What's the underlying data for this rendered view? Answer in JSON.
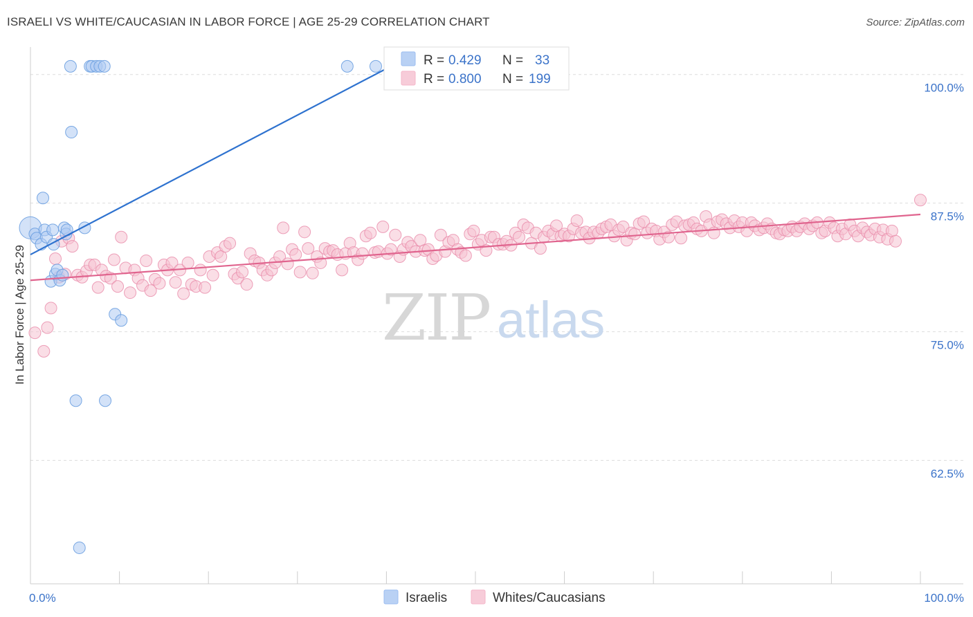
{
  "header": {
    "title": "ISRAELI VS WHITE/CAUCASIAN IN LABOR FORCE | AGE 25-29 CORRELATION CHART",
    "source": "Source: ZipAtlas.com"
  },
  "watermark": {
    "zip": "ZIP",
    "atlas": "atlas"
  },
  "legend_top": {
    "rows": [
      {
        "r_label": "R =",
        "r_value": "0.429",
        "n_label": "N =",
        "n_value": "33",
        "color": "#9bbdf0"
      },
      {
        "r_label": "R =",
        "r_value": "0.800",
        "n_label": "N =",
        "n_value": "199",
        "color": "#f4b6c9"
      }
    ]
  },
  "legend_bottom": {
    "items": [
      {
        "label": "Israelis",
        "color": "#9bbdf0"
      },
      {
        "label": "Whites/Caucasians",
        "color": "#f4b6c9"
      }
    ]
  },
  "colors": {
    "blue_fill": "#aecbf2",
    "blue_stroke": "#6a9ee0",
    "blue_line": "#2e72cf",
    "pink_fill": "#f6c3d2",
    "pink_stroke": "#e88aa9",
    "pink_line": "#e0648e",
    "grid": "#dddddd",
    "tick_text": "#3b73c9"
  },
  "chart_data": {
    "type": "scatter",
    "title": "ISRAELI VS WHITE/CAUCASIAN IN LABOR FORCE | AGE 25-29 CORRELATION CHART",
    "xlabel": "",
    "ylabel": "In Labor Force | Age 25-29",
    "xlim": [
      0,
      100
    ],
    "ylim": [
      50.5,
      102
    ],
    "x_tick_labels": [
      "0.0%",
      "100.0%"
    ],
    "y_ticks": [
      62.5,
      75.0,
      87.5,
      100.0
    ],
    "y_tick_labels": [
      "62.5%",
      "75.0%",
      "87.5%",
      "100.0%"
    ],
    "grid": "horizontal dashed",
    "legend_placement": "top-center",
    "series": [
      {
        "name": "Israelis",
        "r": 0.429,
        "n": 33,
        "trend": {
          "x": [
            0,
            40.5
          ],
          "y": [
            82.5,
            100.8
          ]
        },
        "points": [
          {
            "x": 0,
            "y": 85.1,
            "big": true
          },
          {
            "x": 0.5,
            "y": 84.5
          },
          {
            "x": 0.7,
            "y": 84.1
          },
          {
            "x": 1.2,
            "y": 83.5
          },
          {
            "x": 1.6,
            "y": 84.9
          },
          {
            "x": 1.8,
            "y": 84.2
          },
          {
            "x": 2.3,
            "y": 79.9
          },
          {
            "x": 2.5,
            "y": 84.9
          },
          {
            "x": 2.6,
            "y": 83.5
          },
          {
            "x": 2.8,
            "y": 80.6
          },
          {
            "x": 3.0,
            "y": 81.0
          },
          {
            "x": 3.3,
            "y": 80.0
          },
          {
            "x": 3.6,
            "y": 80.5
          },
          {
            "x": 3.8,
            "y": 85.1
          },
          {
            "x": 4.0,
            "y": 84.5
          },
          {
            "x": 4.1,
            "y": 84.9
          },
          {
            "x": 1.4,
            "y": 88.0
          },
          {
            "x": 4.5,
            "y": 100.8
          },
          {
            "x": 4.6,
            "y": 94.4
          },
          {
            "x": 5.1,
            "y": 68.3
          },
          {
            "x": 5.5,
            "y": 54.0
          },
          {
            "x": 6.1,
            "y": 85.1
          },
          {
            "x": 6.7,
            "y": 100.8
          },
          {
            "x": 6.9,
            "y": 100.8
          },
          {
            "x": 7.4,
            "y": 100.8
          },
          {
            "x": 7.8,
            "y": 100.8
          },
          {
            "x": 8.3,
            "y": 100.8
          },
          {
            "x": 8.4,
            "y": 68.3
          },
          {
            "x": 9.5,
            "y": 76.7
          },
          {
            "x": 10.2,
            "y": 76.1
          },
          {
            "x": 35.6,
            "y": 100.8
          },
          {
            "x": 38.8,
            "y": 100.8
          },
          {
            "x": 45.2,
            "y": 100.8
          }
        ]
      },
      {
        "name": "Whites/Caucasians",
        "r": 0.8,
        "n": 199,
        "trend": {
          "x": [
            0,
            100
          ],
          "y": [
            80.0,
            86.4
          ]
        },
        "points": [
          {
            "x": 0.5,
            "y": 74.9
          },
          {
            "x": 1.5,
            "y": 73.1
          },
          {
            "x": 1.9,
            "y": 75.4
          },
          {
            "x": 2.3,
            "y": 77.3
          },
          {
            "x": 2.8,
            "y": 82.1
          },
          {
            "x": 3.2,
            "y": 80.3
          },
          {
            "x": 3.5,
            "y": 83.8
          },
          {
            "x": 3.9,
            "y": 80.6
          },
          {
            "x": 4.3,
            "y": 84.1
          },
          {
            "x": 4.7,
            "y": 83.3
          },
          {
            "x": 5.3,
            "y": 80.5
          },
          {
            "x": 5.8,
            "y": 80.3
          },
          {
            "x": 6.3,
            "y": 80.9
          },
          {
            "x": 6.7,
            "y": 81.5
          },
          {
            "x": 7.2,
            "y": 81.5
          },
          {
            "x": 7.6,
            "y": 79.3
          },
          {
            "x": 8.0,
            "y": 81.0
          },
          {
            "x": 8.5,
            "y": 80.4
          },
          {
            "x": 9.0,
            "y": 80.2
          },
          {
            "x": 9.4,
            "y": 82.0
          },
          {
            "x": 9.8,
            "y": 79.4
          },
          {
            "x": 10.2,
            "y": 84.2
          },
          {
            "x": 10.7,
            "y": 81.2
          },
          {
            "x": 11.2,
            "y": 78.8
          },
          {
            "x": 11.7,
            "y": 81.0
          },
          {
            "x": 12.1,
            "y": 80.2
          },
          {
            "x": 12.6,
            "y": 79.5
          },
          {
            "x": 13.0,
            "y": 81.9
          },
          {
            "x": 13.5,
            "y": 79.0
          },
          {
            "x": 14.0,
            "y": 80.1
          },
          {
            "x": 14.5,
            "y": 79.7
          },
          {
            "x": 15.0,
            "y": 81.5
          },
          {
            "x": 15.4,
            "y": 81.0
          },
          {
            "x": 15.9,
            "y": 81.7
          },
          {
            "x": 16.3,
            "y": 79.8
          },
          {
            "x": 16.8,
            "y": 81.0
          },
          {
            "x": 17.2,
            "y": 78.7
          },
          {
            "x": 17.7,
            "y": 81.7
          },
          {
            "x": 18.1,
            "y": 79.6
          },
          {
            "x": 18.6,
            "y": 79.4
          },
          {
            "x": 19.1,
            "y": 81.0
          },
          {
            "x": 19.6,
            "y": 79.3
          },
          {
            "x": 20.1,
            "y": 82.3
          },
          {
            "x": 20.5,
            "y": 80.5
          },
          {
            "x": 21.0,
            "y": 82.7
          },
          {
            "x": 21.4,
            "y": 82.3
          },
          {
            "x": 21.9,
            "y": 83.3
          },
          {
            "x": 22.4,
            "y": 83.6
          },
          {
            "x": 22.9,
            "y": 80.6
          },
          {
            "x": 23.3,
            "y": 80.2
          },
          {
            "x": 23.8,
            "y": 80.8
          },
          {
            "x": 24.3,
            "y": 79.6
          },
          {
            "x": 24.7,
            "y": 82.6
          },
          {
            "x": 25.2,
            "y": 81.9
          },
          {
            "x": 25.7,
            "y": 81.7
          },
          {
            "x": 26.1,
            "y": 81.0
          },
          {
            "x": 26.6,
            "y": 80.5
          },
          {
            "x": 27.1,
            "y": 81.0
          },
          {
            "x": 27.5,
            "y": 81.7
          },
          {
            "x": 28.0,
            "y": 82.3
          },
          {
            "x": 28.4,
            "y": 85.1
          },
          {
            "x": 28.9,
            "y": 81.6
          },
          {
            "x": 29.4,
            "y": 83.0
          },
          {
            "x": 29.8,
            "y": 82.5
          },
          {
            "x": 30.3,
            "y": 80.8
          },
          {
            "x": 30.8,
            "y": 84.7
          },
          {
            "x": 31.2,
            "y": 83.1
          },
          {
            "x": 31.7,
            "y": 80.7
          },
          {
            "x": 32.2,
            "y": 82.3
          },
          {
            "x": 32.6,
            "y": 81.7
          },
          {
            "x": 33.1,
            "y": 83.1
          },
          {
            "x": 33.6,
            "y": 82.8
          },
          {
            "x": 34.0,
            "y": 82.9
          },
          {
            "x": 34.5,
            "y": 82.5
          },
          {
            "x": 35.0,
            "y": 81.0
          },
          {
            "x": 35.4,
            "y": 82.6
          },
          {
            "x": 35.9,
            "y": 83.6
          },
          {
            "x": 36.3,
            "y": 82.7
          },
          {
            "x": 36.8,
            "y": 82.0
          },
          {
            "x": 37.3,
            "y": 82.6
          },
          {
            "x": 37.7,
            "y": 84.3
          },
          {
            "x": 38.2,
            "y": 84.6
          },
          {
            "x": 38.7,
            "y": 82.7
          },
          {
            "x": 39.1,
            "y": 82.8
          },
          {
            "x": 39.6,
            "y": 85.2
          },
          {
            "x": 40.1,
            "y": 82.6
          },
          {
            "x": 40.5,
            "y": 83.0
          },
          {
            "x": 41.0,
            "y": 84.4
          },
          {
            "x": 41.5,
            "y": 82.3
          },
          {
            "x": 41.9,
            "y": 83.0
          },
          {
            "x": 42.4,
            "y": 83.7
          },
          {
            "x": 42.8,
            "y": 83.3
          },
          {
            "x": 43.3,
            "y": 82.8
          },
          {
            "x": 43.8,
            "y": 83.9
          },
          {
            "x": 44.3,
            "y": 82.9
          },
          {
            "x": 44.7,
            "y": 83.0
          },
          {
            "x": 45.2,
            "y": 82.1
          },
          {
            "x": 45.6,
            "y": 82.4
          },
          {
            "x": 46.1,
            "y": 84.4
          },
          {
            "x": 46.6,
            "y": 82.8
          },
          {
            "x": 47.0,
            "y": 83.7
          },
          {
            "x": 47.5,
            "y": 83.9
          },
          {
            "x": 48.0,
            "y": 83.0
          },
          {
            "x": 48.4,
            "y": 82.7
          },
          {
            "x": 48.9,
            "y": 82.4
          },
          {
            "x": 49.4,
            "y": 84.5
          },
          {
            "x": 49.8,
            "y": 84.8
          },
          {
            "x": 50.3,
            "y": 83.5
          },
          {
            "x": 50.7,
            "y": 83.9
          },
          {
            "x": 51.2,
            "y": 82.9
          },
          {
            "x": 51.7,
            "y": 84.2
          },
          {
            "x": 52.1,
            "y": 84.2
          },
          {
            "x": 52.6,
            "y": 83.5
          },
          {
            "x": 53.1,
            "y": 83.5
          },
          {
            "x": 53.5,
            "y": 83.8
          },
          {
            "x": 54.0,
            "y": 83.4
          },
          {
            "x": 54.5,
            "y": 84.6
          },
          {
            "x": 54.9,
            "y": 84.2
          },
          {
            "x": 55.4,
            "y": 85.4
          },
          {
            "x": 55.9,
            "y": 85.1
          },
          {
            "x": 56.3,
            "y": 83.6
          },
          {
            "x": 56.8,
            "y": 84.6
          },
          {
            "x": 57.3,
            "y": 83.1
          },
          {
            "x": 57.7,
            "y": 84.2
          },
          {
            "x": 58.2,
            "y": 84.8
          },
          {
            "x": 58.7,
            "y": 84.5
          },
          {
            "x": 59.1,
            "y": 85.3
          },
          {
            "x": 59.6,
            "y": 84.3
          },
          {
            "x": 60.0,
            "y": 84.5
          },
          {
            "x": 60.5,
            "y": 84.3
          },
          {
            "x": 61.0,
            "y": 85.0
          },
          {
            "x": 61.4,
            "y": 85.8
          },
          {
            "x": 61.9,
            "y": 84.6
          },
          {
            "x": 62.4,
            "y": 84.7
          },
          {
            "x": 62.8,
            "y": 84.1
          },
          {
            "x": 63.3,
            "y": 84.7
          },
          {
            "x": 63.8,
            "y": 84.6
          },
          {
            "x": 64.2,
            "y": 85.0
          },
          {
            "x": 64.7,
            "y": 85.2
          },
          {
            "x": 65.2,
            "y": 85.4
          },
          {
            "x": 65.6,
            "y": 84.3
          },
          {
            "x": 66.1,
            "y": 84.9
          },
          {
            "x": 66.6,
            "y": 85.2
          },
          {
            "x": 67.0,
            "y": 83.9
          },
          {
            "x": 67.5,
            "y": 84.6
          },
          {
            "x": 67.9,
            "y": 84.5
          },
          {
            "x": 68.4,
            "y": 85.5
          },
          {
            "x": 68.9,
            "y": 85.7
          },
          {
            "x": 69.3,
            "y": 84.6
          },
          {
            "x": 69.8,
            "y": 85.0
          },
          {
            "x": 70.3,
            "y": 84.8
          },
          {
            "x": 70.7,
            "y": 84.0
          },
          {
            "x": 71.2,
            "y": 84.7
          },
          {
            "x": 71.7,
            "y": 84.2
          },
          {
            "x": 72.1,
            "y": 85.4
          },
          {
            "x": 72.6,
            "y": 85.7
          },
          {
            "x": 73.1,
            "y": 84.1
          },
          {
            "x": 73.5,
            "y": 85.3
          },
          {
            "x": 74.0,
            "y": 85.4
          },
          {
            "x": 74.5,
            "y": 85.6
          },
          {
            "x": 74.9,
            "y": 85.0
          },
          {
            "x": 75.4,
            "y": 84.8
          },
          {
            "x": 75.9,
            "y": 86.2
          },
          {
            "x": 76.3,
            "y": 85.4
          },
          {
            "x": 76.8,
            "y": 84.6
          },
          {
            "x": 77.2,
            "y": 85.7
          },
          {
            "x": 77.7,
            "y": 85.9
          },
          {
            "x": 78.2,
            "y": 85.5
          },
          {
            "x": 78.6,
            "y": 85.1
          },
          {
            "x": 79.1,
            "y": 85.8
          },
          {
            "x": 79.6,
            "y": 85.2
          },
          {
            "x": 80.0,
            "y": 85.6
          },
          {
            "x": 80.5,
            "y": 84.8
          },
          {
            "x": 81.0,
            "y": 85.6
          },
          {
            "x": 81.4,
            "y": 85.3
          },
          {
            "x": 81.9,
            "y": 84.9
          },
          {
            "x": 82.4,
            "y": 85.1
          },
          {
            "x": 82.8,
            "y": 85.5
          },
          {
            "x": 83.3,
            "y": 85.0
          },
          {
            "x": 83.8,
            "y": 84.6
          },
          {
            "x": 84.2,
            "y": 84.5
          },
          {
            "x": 84.7,
            "y": 84.9
          },
          {
            "x": 85.1,
            "y": 84.8
          },
          {
            "x": 85.6,
            "y": 85.2
          },
          {
            "x": 86.1,
            "y": 84.8
          },
          {
            "x": 86.5,
            "y": 85.2
          },
          {
            "x": 87.0,
            "y": 85.5
          },
          {
            "x": 87.5,
            "y": 85.0
          },
          {
            "x": 87.9,
            "y": 85.3
          },
          {
            "x": 88.4,
            "y": 85.6
          },
          {
            "x": 88.9,
            "y": 84.6
          },
          {
            "x": 89.3,
            "y": 84.8
          },
          {
            "x": 89.8,
            "y": 85.6
          },
          {
            "x": 90.3,
            "y": 85.1
          },
          {
            "x": 90.7,
            "y": 84.3
          },
          {
            "x": 91.2,
            "y": 85.0
          },
          {
            "x": 91.6,
            "y": 84.5
          },
          {
            "x": 92.1,
            "y": 85.4
          },
          {
            "x": 92.6,
            "y": 84.8
          },
          {
            "x": 93.0,
            "y": 84.3
          },
          {
            "x": 93.5,
            "y": 85.1
          },
          {
            "x": 94.0,
            "y": 84.7
          },
          {
            "x": 94.4,
            "y": 84.4
          },
          {
            "x": 94.9,
            "y": 85.0
          },
          {
            "x": 95.4,
            "y": 84.2
          },
          {
            "x": 95.8,
            "y": 84.9
          },
          {
            "x": 96.3,
            "y": 84.0
          },
          {
            "x": 96.8,
            "y": 84.8
          },
          {
            "x": 97.2,
            "y": 83.8
          },
          {
            "x": 100.0,
            "y": 87.8
          }
        ]
      }
    ]
  }
}
